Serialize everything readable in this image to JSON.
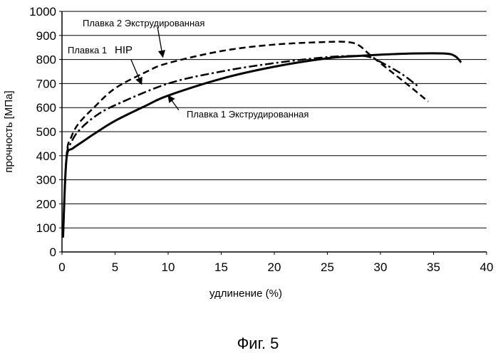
{
  "chart_data": {
    "type": "line",
    "title": "",
    "xlabel": "удлинение (%)",
    "ylabel": "прочность [МПа]",
    "xlim": [
      0,
      40
    ],
    "ylim": [
      0,
      1000
    ],
    "x_ticks": [
      0,
      5,
      10,
      15,
      20,
      25,
      30,
      35,
      40
    ],
    "y_ticks": [
      0,
      100,
      200,
      300,
      400,
      500,
      600,
      700,
      800,
      900,
      1000
    ],
    "grid": "horizontal",
    "series": [
      {
        "style": "dashed",
        "points": [
          [
            0.1,
            60
          ],
          [
            0.3,
            300
          ],
          [
            0.5,
            430
          ],
          [
            0.8,
            470
          ],
          [
            1.5,
            530
          ],
          [
            3,
            600
          ],
          [
            5,
            680
          ],
          [
            8,
            750
          ],
          [
            10,
            785
          ],
          [
            15,
            835
          ],
          [
            20,
            862
          ],
          [
            25,
            873
          ],
          [
            27,
            872
          ],
          [
            28,
            858
          ],
          [
            29,
            820
          ],
          [
            31,
            750
          ],
          [
            33,
            680
          ],
          [
            34.5,
            625
          ]
        ]
      },
      {
        "style": "dash-dot",
        "points": [
          [
            0.1,
            60
          ],
          [
            0.3,
            300
          ],
          [
            0.5,
            420
          ],
          [
            0.8,
            450
          ],
          [
            1.5,
            500
          ],
          [
            3,
            560
          ],
          [
            5,
            610
          ],
          [
            10,
            700
          ],
          [
            15,
            750
          ],
          [
            20,
            785
          ],
          [
            25,
            810
          ],
          [
            28,
            815
          ],
          [
            29,
            810
          ],
          [
            30,
            790
          ],
          [
            32,
            740
          ],
          [
            33.5,
            690
          ]
        ]
      },
      {
        "style": "solid",
        "points": [
          [
            0.1,
            60
          ],
          [
            0.3,
            300
          ],
          [
            0.5,
            410
          ],
          [
            1,
            430
          ],
          [
            2,
            460
          ],
          [
            3,
            490
          ],
          [
            5,
            545
          ],
          [
            8,
            610
          ],
          [
            10,
            650
          ],
          [
            15,
            720
          ],
          [
            20,
            770
          ],
          [
            25,
            805
          ],
          [
            28,
            815
          ],
          [
            30,
            820
          ],
          [
            33,
            825
          ],
          [
            36,
            825
          ],
          [
            37,
            815
          ],
          [
            37.6,
            788
          ]
        ]
      }
    ],
    "annotations": [
      {
        "id": "melt2_extruded",
        "text": "Плавка 2 Экструдированная",
        "from": [
          9,
          935
        ],
        "to": [
          9.5,
          810
        ]
      },
      {
        "id": "melt1_hip_prefix",
        "text": "Плавка 1",
        "from": null,
        "to": null
      },
      {
        "id": "melt1_hip_suffix",
        "text": "HIP",
        "from": [
          6.5,
          800
        ],
        "to": [
          7.5,
          697
        ]
      },
      {
        "id": "melt1_extruded",
        "text": "Плавка 1 Экструдированная",
        "from": [
          11,
          590
        ],
        "to": [
          10,
          650
        ]
      }
    ]
  },
  "caption": "Фиг. 5"
}
